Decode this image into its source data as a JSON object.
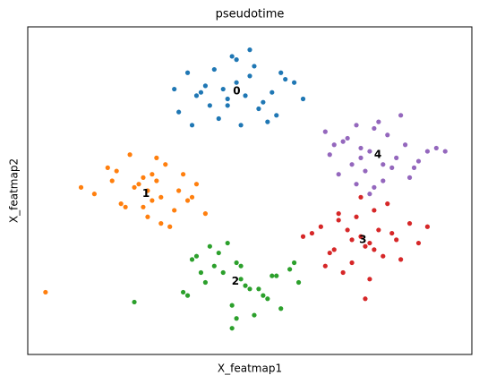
{
  "chart_data": {
    "type": "scatter",
    "title": "pseudotime",
    "x_label": "X_featmap1",
    "y_label": "X_featmap2",
    "xlim": [
      0,
      100
    ],
    "ylim": [
      0,
      100
    ],
    "series": [
      {
        "name": "0",
        "color": "#1f77b4",
        "x": [
          40,
          45,
          50,
          52,
          47,
          43,
          55,
          58,
          38,
          36,
          48,
          51,
          44,
          41,
          53,
          60,
          34,
          46,
          49,
          56,
          42,
          39,
          54,
          47,
          50,
          45,
          57,
          37,
          62,
          33
        ],
        "values": [
          82,
          78,
          85,
          75,
          90,
          72,
          80,
          84,
          79,
          86,
          70,
          88,
          81,
          76,
          77,
          83,
          74,
          91,
          79,
          73,
          87,
          80,
          71,
          83,
          93,
          76,
          86,
          70,
          78,
          81
        ]
      },
      {
        "name": "1",
        "color": "#ff7f0e",
        "x": [
          25,
          30,
          28,
          22,
          34,
          19,
          27,
          31,
          36,
          24,
          15,
          29,
          33,
          26,
          21,
          38,
          18,
          30,
          27,
          40,
          23,
          35,
          12,
          28,
          32,
          20,
          37,
          26,
          29,
          4
        ],
        "values": [
          52,
          48,
          55,
          45,
          50,
          53,
          42,
          58,
          47,
          51,
          49,
          60,
          44,
          54,
          46,
          52,
          57,
          40,
          50,
          43,
          61,
          55,
          51,
          47,
          39,
          56,
          48,
          45,
          53,
          19
        ]
      },
      {
        "name": "2",
        "color": "#2ca02c",
        "x": [
          44,
          50,
          47,
          40,
          53,
          38,
          46,
          56,
          42,
          49,
          35,
          59,
          45,
          51,
          48,
          37,
          54,
          43,
          61,
          46,
          39,
          52,
          57,
          41,
          48,
          36,
          55,
          47,
          60,
          24
        ],
        "values": [
          25,
          20,
          28,
          22,
          18,
          30,
          15,
          24,
          27,
          21,
          19,
          26,
          34,
          12,
          23,
          29,
          17,
          31,
          22,
          8,
          25,
          20,
          14,
          33,
          27,
          18,
          24,
          11,
          28,
          16
        ]
      },
      {
        "name": "3",
        "color": "#d62728",
        "x": [
          72,
          77,
          70,
          80,
          75,
          66,
          83,
          78,
          69,
          73,
          86,
          64,
          76,
          81,
          71,
          88,
          74,
          68,
          79,
          84,
          62,
          75,
          77,
          70,
          82,
          73,
          90,
          67,
          76,
          78
        ],
        "values": [
          38,
          34,
          41,
          30,
          36,
          39,
          35,
          44,
          32,
          28,
          40,
          37,
          33,
          46,
          25,
          34,
          42,
          31,
          38,
          29,
          36,
          48,
          23,
          43,
          37,
          35,
          39,
          27,
          17,
          32
        ]
      },
      {
        "name": "4",
        "color": "#9467bd",
        "x": [
          75,
          80,
          72,
          83,
          77,
          70,
          85,
          78,
          74,
          88,
          68,
          81,
          76,
          92,
          79,
          73,
          86,
          71,
          82,
          67,
          77,
          90,
          75,
          84,
          80,
          69,
          87,
          78,
          94,
          74
        ],
        "values": [
          63,
          58,
          66,
          60,
          62,
          55,
          64,
          69,
          52,
          59,
          61,
          67,
          56,
          63,
          71,
          58,
          54,
          65,
          57,
          68,
          49,
          62,
          60,
          73,
          53,
          64,
          57,
          51,
          62,
          70
        ]
      }
    ]
  }
}
